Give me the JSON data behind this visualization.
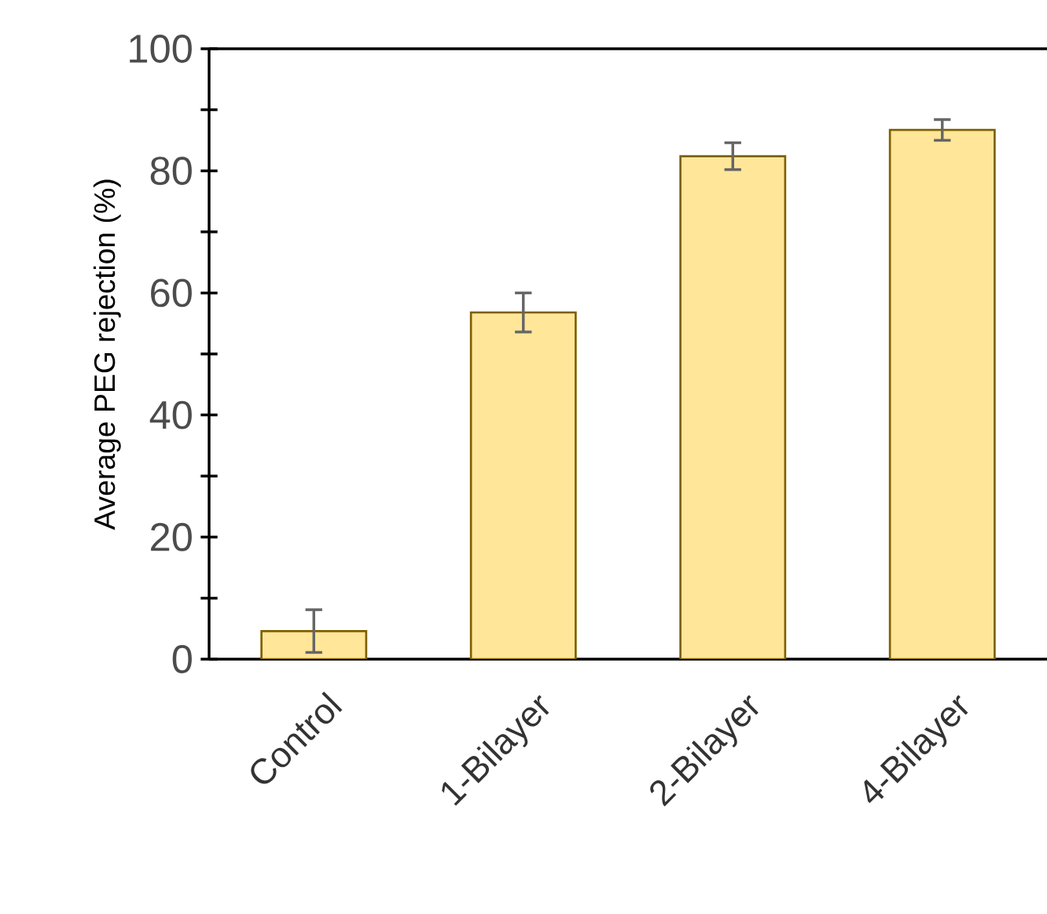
{
  "chart_data": {
    "type": "bar",
    "ylabel": "Average PEG rejection (%)",
    "categories": [
      "Control",
      "1-Bilayer",
      "2-Bilayer",
      "4-Bilayer"
    ],
    "values": [
      4.6,
      56.8,
      82.4,
      86.7
    ],
    "errors": [
      3.5,
      3.2,
      2.2,
      1.7
    ],
    "color": "#ffe699",
    "ylim": [
      0,
      100
    ],
    "yticks": [
      0,
      {
        "value": 10,
        "label": null
      },
      20,
      {
        "value": 30,
        "label": null
      },
      40,
      {
        "value": 50,
        "label": null
      },
      60,
      {
        "value": 70,
        "label": null
      },
      80,
      {
        "value": 90,
        "label": null
      },
      100
    ]
  }
}
